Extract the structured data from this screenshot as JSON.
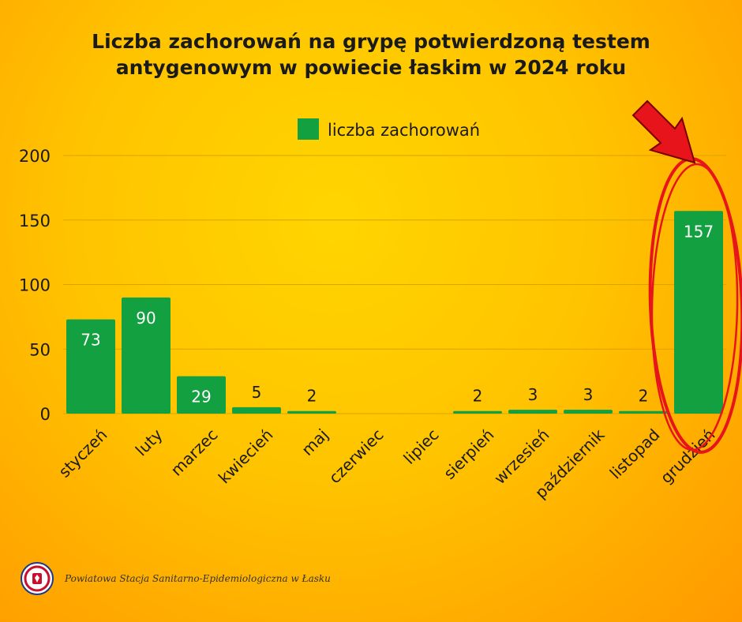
{
  "title": {
    "line1": "Liczba zachorowań na grypę potwierdzoną testem",
    "line2": "antygenowym w powiecie łaskim w 2024 roku"
  },
  "footer": {
    "text": "Powiatowa Stacja Sanitarno-Epidemiologiczna w Łasku",
    "logo_icon": "pss-emblem-icon"
  },
  "colors": {
    "bar": "#12a040",
    "annotation": "#e8141c"
  },
  "chart_data": {
    "type": "bar",
    "categories": [
      "styczeń",
      "luty",
      "marzec",
      "kwiecień",
      "maj",
      "czerwiec",
      "lipiec",
      "sierpień",
      "wrzesień",
      "październik",
      "listopad",
      "grudzień"
    ],
    "series": [
      {
        "name": "liczba zachorowań",
        "values": [
          73,
          90,
          29,
          5,
          2,
          0,
          0,
          2,
          3,
          3,
          2,
          157
        ]
      }
    ],
    "data_labels": [
      "73",
      "90",
      "29",
      "5",
      "2",
      "",
      "",
      "2",
      "3",
      "3",
      "2",
      "157"
    ],
    "ylim": [
      0,
      200
    ],
    "yticks": [
      0,
      50,
      100,
      150,
      200
    ],
    "grid": true,
    "legend": "top-center",
    "annotation": "red arrow and hand-drawn circle highlighting grudzień"
  }
}
